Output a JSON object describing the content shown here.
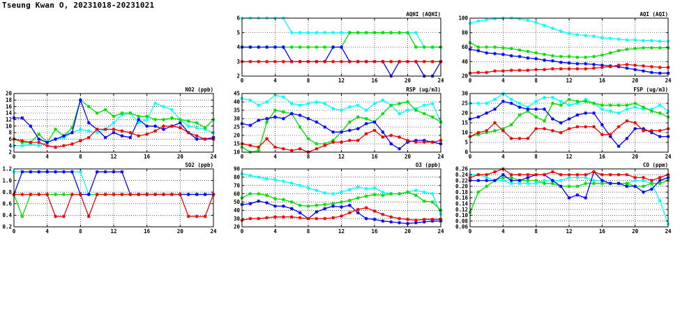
{
  "page_title": "Tseung Kwan O, 20231018-20231021",
  "chart_data": [
    {
      "type": "line",
      "title": "AQHI (AQHI)",
      "ylim": [
        2,
        6
      ],
      "yticks": [
        2,
        3,
        4,
        5,
        6
      ],
      "xlim": [
        0,
        24
      ],
      "xticks": [
        0,
        4,
        8,
        12,
        16,
        20,
        24
      ],
      "grid": true,
      "series": [
        {
          "color": "#00ffff",
          "values": [
            6,
            6,
            6,
            6,
            6,
            6,
            5,
            5,
            5,
            5,
            5,
            5,
            5,
            5,
            5,
            5,
            5,
            5,
            5,
            5,
            5,
            5,
            4,
            4,
            4
          ]
        },
        {
          "color": "#00dd00",
          "values": [
            4,
            4,
            4,
            4,
            4,
            4,
            4,
            4,
            4,
            4,
            4,
            4,
            4,
            5,
            5,
            5,
            5,
            5,
            5,
            5,
            5,
            4,
            4,
            4,
            4
          ]
        },
        {
          "color": "#0000ff",
          "values": [
            4,
            4,
            4,
            4,
            4,
            4,
            3,
            3,
            3,
            3,
            3,
            4,
            4,
            3,
            3,
            3,
            3,
            3,
            2,
            3,
            3,
            3,
            2,
            2,
            3
          ]
        },
        {
          "color": "#ee0000",
          "values": [
            3,
            3,
            3,
            3,
            3,
            3,
            3,
            3,
            3,
            3,
            3,
            3,
            3,
            3,
            3,
            3,
            3,
            3,
            3,
            3,
            3,
            3,
            3,
            3,
            3
          ]
        }
      ]
    },
    {
      "type": "line",
      "title": "AQI (AQI)",
      "ylim": [
        20,
        100
      ],
      "yticks": [
        20,
        40,
        60,
        80,
        100
      ],
      "xlim": [
        0,
        24
      ],
      "xticks": [
        0,
        4,
        8,
        12,
        16,
        20,
        24
      ],
      "grid": true,
      "series": [
        {
          "color": "#00ffff",
          "values": [
            93,
            96,
            98,
            99,
            100,
            100,
            99,
            97,
            94,
            90,
            86,
            82,
            79,
            77,
            76,
            75,
            73,
            72,
            71,
            70,
            70,
            69,
            69,
            68,
            68
          ]
        },
        {
          "color": "#00dd00",
          "values": [
            66,
            60,
            60,
            60,
            59,
            58,
            56,
            54,
            52,
            50,
            48,
            47,
            47,
            46,
            46,
            47,
            49,
            52,
            55,
            57,
            58,
            59,
            59,
            59,
            59
          ]
        },
        {
          "color": "#0000ff",
          "values": [
            57,
            55,
            52,
            51,
            50,
            48,
            47,
            45,
            44,
            42,
            41,
            39,
            38,
            37,
            37,
            36,
            35,
            34,
            33,
            31,
            29,
            27,
            25,
            24,
            24
          ]
        },
        {
          "color": "#ee0000",
          "values": [
            24,
            25,
            25,
            27,
            27,
            28,
            28,
            28,
            29,
            29,
            30,
            30,
            30,
            30,
            30,
            31,
            32,
            33,
            35,
            36,
            35,
            34,
            33,
            32,
            32
          ]
        }
      ]
    },
    {
      "type": "line",
      "title": "NO2 (ppb)",
      "ylim": [
        2,
        20
      ],
      "yticks": [
        2,
        4,
        6,
        8,
        10,
        12,
        14,
        16,
        18,
        20
      ],
      "xlim": [
        0,
        24
      ],
      "xticks": [
        0,
        4,
        8,
        12,
        16,
        20,
        24
      ],
      "grid": true,
      "series": [
        {
          "color": "#00ffff",
          "values": [
            4,
            4,
            4.5,
            4,
            5,
            6,
            6.5,
            8,
            9,
            8.5,
            8,
            9,
            11,
            13.5,
            14,
            11,
            12,
            17,
            16,
            15,
            12,
            10,
            9.5,
            9,
            8
          ]
        },
        {
          "color": "#00dd00",
          "values": [
            6,
            5,
            5,
            7.5,
            5,
            9,
            7,
            9.5,
            18,
            16,
            14,
            15,
            13,
            14,
            14,
            13,
            13,
            12,
            12,
            12.5,
            12,
            11.5,
            11,
            9.5,
            12
          ]
        },
        {
          "color": "#0000ff",
          "values": [
            12.5,
            12.5,
            10,
            6,
            5,
            6,
            7,
            8,
            18,
            11,
            9,
            6.5,
            8,
            7,
            6.5,
            12,
            10,
            10,
            9,
            10,
            11,
            8,
            6,
            6,
            6.5
          ]
        },
        {
          "color": "#ee0000",
          "values": [
            6,
            5.5,
            5,
            5,
            4,
            3.5,
            4,
            4.5,
            5.5,
            6.5,
            9,
            9,
            9,
            8.5,
            8,
            7,
            7.5,
            8.5,
            10,
            10,
            9.5,
            8,
            7,
            6,
            6
          ]
        }
      ]
    },
    {
      "type": "line",
      "title": "RSP (ug/m3)",
      "ylim": [
        10,
        45
      ],
      "yticks": [
        10,
        15,
        20,
        25,
        30,
        35,
        40,
        45
      ],
      "xlim": [
        0,
        24
      ],
      "xticks": [
        0,
        4,
        8,
        12,
        16,
        20,
        24
      ],
      "grid": true,
      "series": [
        {
          "color": "#00ffff",
          "values": [
            42,
            41,
            38,
            40,
            44,
            43,
            39,
            38,
            39,
            40,
            39,
            36,
            35,
            37,
            38,
            35,
            39,
            41,
            38,
            33,
            35,
            36,
            38,
            39,
            28
          ]
        },
        {
          "color": "#00dd00",
          "values": [
            13,
            10,
            11,
            28,
            35,
            34,
            33,
            25,
            18,
            15,
            15,
            17,
            22,
            28,
            31,
            30,
            28,
            33,
            38,
            39,
            40,
            35,
            33,
            31,
            28
          ]
        },
        {
          "color": "#0000ff",
          "values": [
            27,
            26,
            29,
            30,
            31,
            30,
            33,
            32,
            30,
            28,
            25,
            22,
            22,
            23,
            24,
            27,
            28,
            22,
            15,
            12,
            16,
            17,
            17,
            16,
            15
          ]
        },
        {
          "color": "#ee0000",
          "values": [
            15,
            14,
            13,
            18,
            13,
            12,
            11,
            12,
            10,
            12,
            14,
            16,
            16,
            17,
            17,
            21,
            23,
            19,
            20,
            19,
            17,
            16,
            16,
            16,
            17
          ]
        }
      ]
    },
    {
      "type": "line",
      "title": "FSP (ug/m3)",
      "ylim": [
        0,
        30
      ],
      "yticks": [
        0,
        5,
        10,
        15,
        20,
        25,
        30
      ],
      "xlim": [
        0,
        24
      ],
      "xticks": [
        0,
        4,
        8,
        12,
        16,
        20,
        24
      ],
      "grid": true,
      "series": [
        {
          "color": "#00ffff",
          "values": [
            25,
            25,
            25,
            27,
            30,
            27,
            25,
            23,
            26,
            28,
            28,
            26,
            24,
            25,
            27,
            25,
            22,
            21,
            20,
            22,
            23,
            22,
            22,
            24,
            21
          ]
        },
        {
          "color": "#00dd00",
          "values": [
            8,
            9,
            10,
            11,
            12,
            14,
            19,
            21,
            18,
            16,
            25,
            24,
            27,
            26,
            26,
            25,
            24,
            24,
            24,
            24,
            25,
            23,
            21,
            20,
            18
          ]
        },
        {
          "color": "#0000ff",
          "values": [
            17,
            18,
            20,
            22,
            26,
            25,
            23,
            22,
            22,
            22,
            17,
            15,
            17,
            19,
            20,
            20,
            14,
            8,
            3,
            7,
            12,
            12,
            10,
            8,
            8
          ]
        },
        {
          "color": "#ee0000",
          "values": [
            8,
            10,
            11,
            15,
            11,
            7,
            7,
            7,
            12,
            12,
            11,
            10,
            12,
            13,
            13,
            13,
            9,
            9,
            13,
            16,
            15,
            11,
            11,
            11,
            12
          ]
        }
      ]
    },
    {
      "type": "line",
      "title": "SO2 (ppb)",
      "ylim": [
        0.2,
        1.2
      ],
      "yticks": [
        0.2,
        0.4,
        0.6,
        0.8,
        1.0,
        1.2
      ],
      "xlim": [
        0,
        24
      ],
      "xticks": [
        0,
        4,
        8,
        12,
        16,
        20,
        24
      ],
      "grid": true,
      "series": [
        {
          "color": "#00ffff",
          "values": [
            1.15,
            1.15,
            1.15,
            1.15,
            1.15,
            1.15,
            1.15,
            1.15,
            1.15,
            0.76,
            0.76,
            0.76,
            0.76,
            0.76,
            0.76,
            0.76,
            0.76,
            0.76,
            0.76,
            0.76,
            0.76,
            0.76,
            0.76,
            0.76,
            0.76
          ]
        },
        {
          "color": "#00dd00",
          "values": [
            0.76,
            0.38,
            0.76,
            0.76,
            0.76,
            0.76,
            0.76,
            0.76,
            0.76,
            0.76,
            0.76,
            0.76,
            0.76,
            0.76,
            0.76,
            0.76,
            0.76,
            0.76,
            0.76,
            0.76,
            0.76,
            0.76,
            0.76,
            0.76,
            0.76
          ]
        },
        {
          "color": "#0000ff",
          "values": [
            0.76,
            1.15,
            1.15,
            1.15,
            1.15,
            1.15,
            1.15,
            1.15,
            0.76,
            0.76,
            1.15,
            1.15,
            1.15,
            1.15,
            0.76,
            0.76,
            0.76,
            0.76,
            0.76,
            0.76,
            0.76,
            0.76,
            0.76,
            0.76,
            0.76
          ]
        },
        {
          "color": "#ee0000",
          "values": [
            0.76,
            0.76,
            0.76,
            0.76,
            0.76,
            0.38,
            0.38,
            0.76,
            0.76,
            0.38,
            0.76,
            0.76,
            0.76,
            0.76,
            0.76,
            0.76,
            0.76,
            0.76,
            0.76,
            0.76,
            0.76,
            0.38,
            0.38,
            0.38,
            0.76
          ]
        }
      ]
    },
    {
      "type": "line",
      "title": "O3 (ppb)",
      "ylim": [
        20,
        90
      ],
      "yticks": [
        20,
        30,
        40,
        50,
        60,
        70,
        80,
        90
      ],
      "xlim": [
        0,
        24
      ],
      "xticks": [
        0,
        4,
        8,
        12,
        16,
        20,
        24
      ],
      "grid": true,
      "series": [
        {
          "color": "#00ffff",
          "values": [
            84,
            82,
            80,
            78,
            77,
            75,
            73,
            70,
            67,
            64,
            61,
            60,
            62,
            65,
            68,
            66,
            67,
            62,
            60,
            60,
            62,
            64,
            62,
            60,
            35
          ]
        },
        {
          "color": "#00dd00",
          "values": [
            55,
            60,
            60,
            58,
            54,
            53,
            50,
            46,
            45,
            46,
            47,
            48,
            50,
            52,
            55,
            57,
            59,
            58,
            60,
            60,
            62,
            58,
            51,
            50,
            40
          ]
        },
        {
          "color": "#0000ff",
          "values": [
            47,
            48,
            51,
            49,
            45,
            45,
            42,
            37,
            30,
            38,
            42,
            45,
            44,
            46,
            37,
            30,
            29,
            27,
            26,
            25,
            24,
            25,
            26,
            27,
            27
          ]
        },
        {
          "color": "#ee0000",
          "values": [
            28,
            30,
            30,
            31,
            32,
            32,
            32,
            31,
            30,
            30,
            30,
            31,
            33,
            37,
            41,
            43,
            39,
            35,
            32,
            30,
            29,
            28,
            29,
            29,
            29
          ]
        }
      ]
    },
    {
      "type": "line",
      "title": "CO (ppm)",
      "ylim": [
        0.06,
        0.26
      ],
      "yticks": [
        0.06,
        0.08,
        0.1,
        0.12,
        0.14,
        0.16,
        0.18,
        0.2,
        0.22,
        0.24,
        0.26
      ],
      "xlim": [
        0,
        24
      ],
      "xticks": [
        0,
        4,
        8,
        12,
        16,
        20,
        24
      ],
      "grid": true,
      "series": [
        {
          "color": "#00ffff",
          "values": [
            0.24,
            0.24,
            0.23,
            0.22,
            0.22,
            0.21,
            0.21,
            0.21,
            0.21,
            0.22,
            0.22,
            0.22,
            0.23,
            0.23,
            0.23,
            0.22,
            0.22,
            0.21,
            0.21,
            0.21,
            0.22,
            0.22,
            0.21,
            0.15,
            0.07
          ]
        },
        {
          "color": "#00dd00",
          "values": [
            0.11,
            0.18,
            0.2,
            0.22,
            0.23,
            0.23,
            0.22,
            0.22,
            0.22,
            0.21,
            0.21,
            0.2,
            0.2,
            0.2,
            0.21,
            0.21,
            0.21,
            0.21,
            0.21,
            0.21,
            0.2,
            0.2,
            0.21,
            0.21,
            0.22
          ]
        },
        {
          "color": "#0000ff",
          "values": [
            0.22,
            0.22,
            0.22,
            0.22,
            0.24,
            0.22,
            0.22,
            0.23,
            0.24,
            0.24,
            0.22,
            0.2,
            0.16,
            0.17,
            0.16,
            0.25,
            0.22,
            0.21,
            0.21,
            0.2,
            0.2,
            0.18,
            0.19,
            0.22,
            0.23
          ]
        },
        {
          "color": "#ee0000",
          "values": [
            0.23,
            0.24,
            0.24,
            0.25,
            0.26,
            0.24,
            0.24,
            0.24,
            0.24,
            0.24,
            0.25,
            0.24,
            0.24,
            0.24,
            0.24,
            0.25,
            0.24,
            0.24,
            0.24,
            0.24,
            0.23,
            0.23,
            0.22,
            0.23,
            0.24
          ]
        }
      ]
    }
  ]
}
